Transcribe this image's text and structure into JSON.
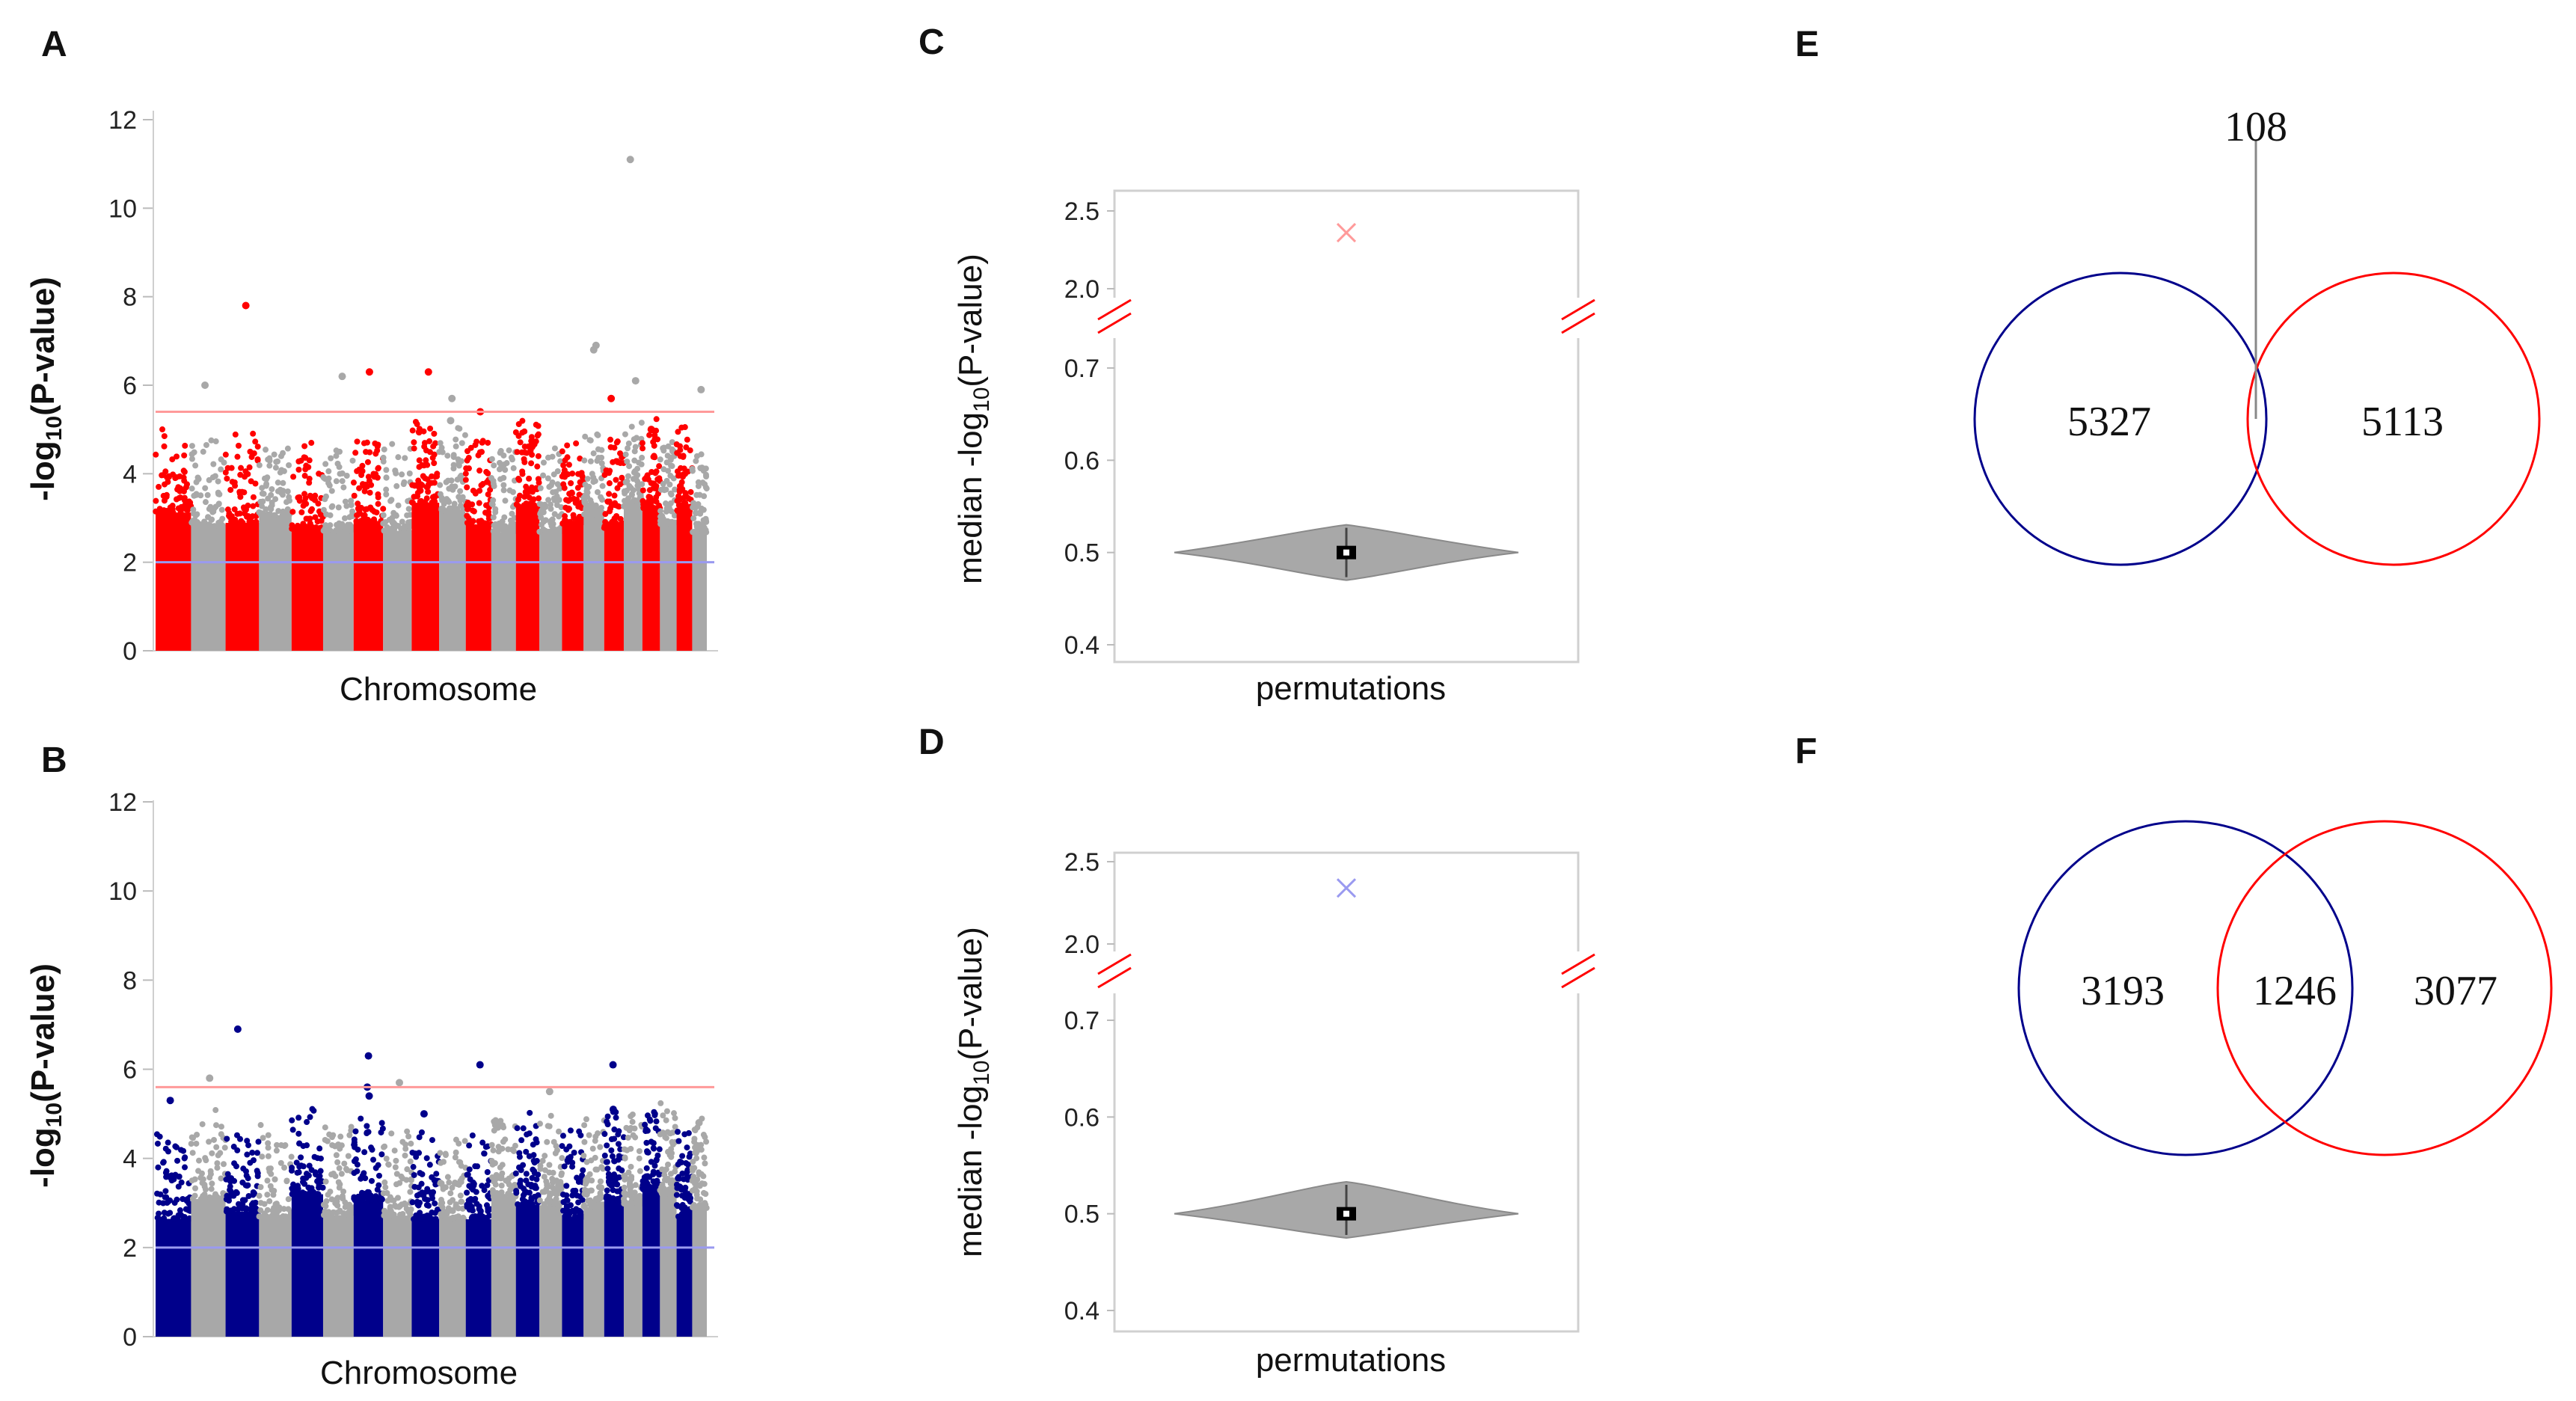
{
  "chart_data": [
    {
      "panel": "A",
      "type": "scatter",
      "subtype": "manhattan",
      "xlabel": "Chromosome",
      "ylabel_prefix": "-log",
      "ylabel_sub": "10",
      "ylabel_suffix": "(P-value)",
      "ylim": [
        0,
        12
      ],
      "yticks": [
        0,
        2,
        4,
        6,
        8,
        10,
        12
      ],
      "grid": false,
      "n_chromosomes": 22,
      "colors": [
        "#ff0000",
        "#a8a8a8"
      ],
      "thresholds": [
        {
          "value": 5.4,
          "color": "#ff9a9a"
        },
        {
          "value": 2.0,
          "color": "#9a9af0"
        }
      ],
      "peaks": [
        {
          "chrom": 3,
          "value": 7.8
        },
        {
          "chrom": 2,
          "value": 6.0
        },
        {
          "chrom": 6,
          "value": 6.2
        },
        {
          "chrom": 7,
          "value": 6.3
        },
        {
          "chrom": 9,
          "value": 6.3
        },
        {
          "chrom": 10,
          "value": 5.7
        },
        {
          "chrom": 10,
          "value": 5.2
        },
        {
          "chrom": 11,
          "value": 5.4
        },
        {
          "chrom": 16,
          "value": 6.9
        },
        {
          "chrom": 16,
          "value": 6.8
        },
        {
          "chrom": 17,
          "value": 5.7
        },
        {
          "chrom": 18,
          "value": 11.1
        },
        {
          "chrom": 18,
          "value": 6.1
        },
        {
          "chrom": 19,
          "value": 5.0
        },
        {
          "chrom": 22,
          "value": 5.9
        }
      ]
    },
    {
      "panel": "B",
      "type": "scatter",
      "subtype": "manhattan",
      "xlabel": "Chromosome",
      "ylabel_prefix": "-log",
      "ylabel_sub": "10",
      "ylabel_suffix": "(P-value)",
      "ylim": [
        0,
        12
      ],
      "yticks": [
        0,
        2,
        4,
        6,
        8,
        10,
        12
      ],
      "grid": false,
      "n_chromosomes": 22,
      "colors": [
        "#00008b",
        "#a8a8a8"
      ],
      "thresholds": [
        {
          "value": 5.6,
          "color": "#ff9a9a"
        },
        {
          "value": 2.0,
          "color": "#9a9af0"
        }
      ],
      "peaks": [
        {
          "chrom": 1,
          "value": 5.3
        },
        {
          "chrom": 2,
          "value": 5.8
        },
        {
          "chrom": 3,
          "value": 6.9
        },
        {
          "chrom": 7,
          "value": 6.3
        },
        {
          "chrom": 7,
          "value": 5.6
        },
        {
          "chrom": 7,
          "value": 5.4
        },
        {
          "chrom": 8,
          "value": 5.7
        },
        {
          "chrom": 9,
          "value": 5.0
        },
        {
          "chrom": 11,
          "value": 6.1
        },
        {
          "chrom": 14,
          "value": 5.5
        },
        {
          "chrom": 17,
          "value": 6.1
        },
        {
          "chrom": 17,
          "value": 5.1
        },
        {
          "chrom": 22,
          "value": 4.8
        }
      ]
    },
    {
      "panel": "C",
      "type": "violin",
      "xlabel": "permutations",
      "ylabel_prefix": "median -log",
      "ylabel_sub": "10",
      "ylabel_suffix": "(P-value)",
      "axis_break": true,
      "lower_range": [
        0.4,
        0.7
      ],
      "lower_ticks": [
        "0.4",
        "0.5",
        "0.6",
        "0.7"
      ],
      "upper_ticks": [
        "2.0",
        "2.5"
      ],
      "violin_median": 0.5,
      "violin_range": [
        0.47,
        0.53
      ],
      "observed": 2.36,
      "observed_color": "#ff9a9a",
      "violin_color": "#a8a8a8"
    },
    {
      "panel": "D",
      "type": "violin",
      "xlabel": "permutations",
      "ylabel_prefix": "median -log",
      "ylabel_sub": "10",
      "ylabel_suffix": "(P-value)",
      "axis_break": true,
      "lower_range": [
        0.4,
        0.7
      ],
      "lower_ticks": [
        "0.4",
        "0.5",
        "0.6",
        "0.7"
      ],
      "upper_ticks": [
        "2.0",
        "2.5"
      ],
      "violin_median": 0.5,
      "violin_range": [
        0.475,
        0.533
      ],
      "observed": 2.34,
      "observed_color": "#9a9af0",
      "violin_color": "#a8a8a8"
    },
    {
      "panel": "E",
      "type": "venn",
      "left_only": "5327",
      "right_only": "5113",
      "overlap": "108",
      "left_color": "#00008b",
      "right_color": "#ff0000"
    },
    {
      "panel": "F",
      "type": "venn",
      "left_only": "3193",
      "right_only": "3077",
      "overlap": "1246",
      "left_color": "#00008b",
      "right_color": "#ff0000"
    }
  ]
}
